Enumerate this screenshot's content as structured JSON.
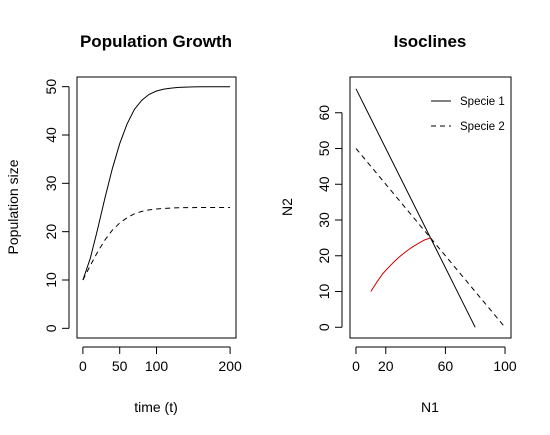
{
  "chart_data": [
    {
      "type": "line",
      "title": "Population Growth",
      "xlabel": "time (t)",
      "ylabel": "Population size",
      "xlim": [
        -8,
        208
      ],
      "ylim": [
        -2,
        52
      ],
      "xticks": [
        0,
        50,
        100,
        200
      ],
      "yticks": [
        0,
        10,
        20,
        30,
        40,
        50
      ],
      "grid": false,
      "series": [
        {
          "style": "solid",
          "color": "#000000",
          "x": [
            0,
            10,
            20,
            30,
            40,
            50,
            60,
            70,
            80,
            90,
            100,
            110,
            120,
            130,
            140,
            150,
            160,
            170,
            180,
            190,
            200
          ],
          "values": [
            10,
            14.5,
            20.5,
            27,
            33,
            38.2,
            42.3,
            45.3,
            47.2,
            48.4,
            49.1,
            49.5,
            49.7,
            49.85,
            49.92,
            49.95,
            49.97,
            49.98,
            49.99,
            50,
            50
          ]
        },
        {
          "style": "dashed",
          "color": "#000000",
          "x": [
            0,
            10,
            20,
            30,
            40,
            50,
            60,
            70,
            80,
            90,
            100,
            110,
            120,
            130,
            140,
            150,
            160,
            170,
            180,
            190,
            200
          ],
          "values": [
            10,
            13,
            15.8,
            18.3,
            20.3,
            21.8,
            22.9,
            23.7,
            24.2,
            24.5,
            24.7,
            24.8,
            24.9,
            24.95,
            24.97,
            24.98,
            24.99,
            25,
            25,
            25,
            25
          ]
        }
      ]
    },
    {
      "type": "line",
      "title": "Isoclines",
      "xlabel": "N1",
      "ylabel": "N2",
      "xlim": [
        -4,
        104
      ],
      "ylim": [
        -3,
        70
      ],
      "xticks": [
        0,
        20,
        60,
        100
      ],
      "yticks": [
        0,
        10,
        20,
        30,
        40,
        50,
        60
      ],
      "grid": false,
      "legend": {
        "position": "top-right",
        "entries": [
          "Specie 1",
          "Specie 2"
        ]
      },
      "series": [
        {
          "name": "Specie 1",
          "style": "solid",
          "color": "#000000",
          "x": [
            0,
            80
          ],
          "values": [
            66.7,
            0
          ]
        },
        {
          "name": "Specie 2",
          "style": "dashed",
          "color": "#000000",
          "x": [
            0,
            100
          ],
          "values": [
            50,
            0
          ]
        },
        {
          "style": "solid",
          "color": "#cc0000",
          "x": [
            10,
            14,
            18,
            22,
            26,
            30,
            34,
            38,
            42,
            46,
            50
          ],
          "values": [
            10,
            12.6,
            15,
            16.8,
            18.5,
            20,
            21.3,
            22.5,
            23.5,
            24.4,
            25
          ]
        }
      ]
    }
  ]
}
